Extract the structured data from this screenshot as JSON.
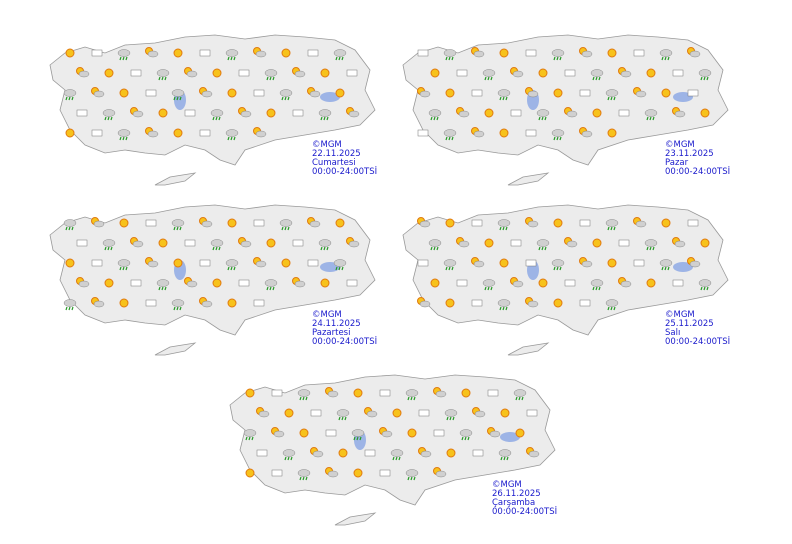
{
  "maps": [
    {
      "credit": "©MGM",
      "date": "22.11.2025",
      "day": "Cumartesi",
      "period": "00:00-24:00TSİ"
    },
    {
      "credit": "©MGM",
      "date": "23.11.2025",
      "day": "Pazar",
      "period": "00:00-24:00TSİ"
    },
    {
      "credit": "©MGM",
      "date": "24.11.2025",
      "day": "Pazartesi",
      "period": "00:00-24:00TSİ"
    },
    {
      "credit": "©MGM",
      "date": "25.11.2025",
      "day": "Salı",
      "period": "00:00-24:00TSİ"
    },
    {
      "credit": "©MGM",
      "date": "26.11.2025",
      "day": "Çarşamba",
      "period": "00:00-24:00TSİ"
    }
  ]
}
